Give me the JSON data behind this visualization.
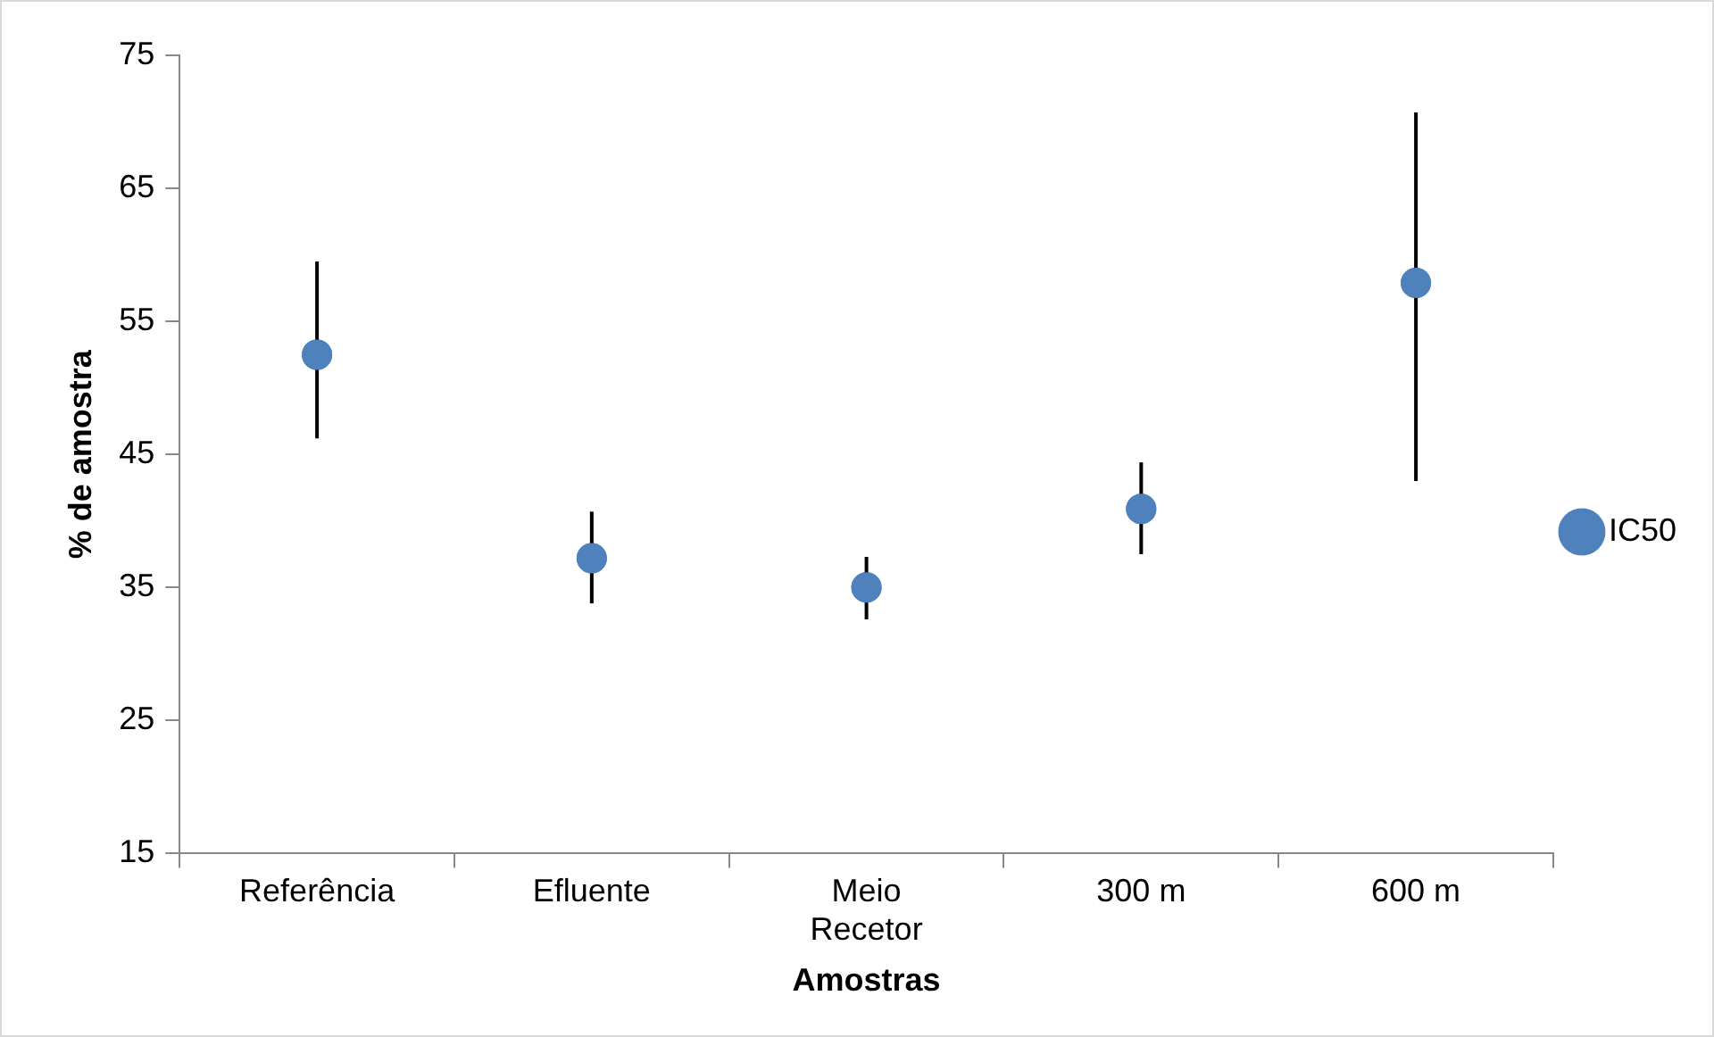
{
  "chart_data": {
    "type": "scatter",
    "xlabel": "Amostras",
    "ylabel": "% de amostra",
    "categories": [
      "Referência",
      "Efluente",
      "Meio Recetor",
      "300 m",
      "600 m"
    ],
    "series": [
      {
        "name": "IC50",
        "color": "#4f81bd",
        "values": [
          52.5,
          37.2,
          35.0,
          40.9,
          57.9
        ],
        "errors": [
          [
            46.2,
            59.5
          ],
          [
            33.8,
            40.7
          ],
          [
            32.6,
            37.3
          ],
          [
            37.5,
            44.4
          ],
          [
            43.0,
            70.7
          ]
        ]
      }
    ],
    "ylim": [
      15,
      75
    ],
    "yticks": [
      15,
      25,
      35,
      45,
      55,
      65,
      75
    ],
    "grid": false,
    "legend": "right",
    "marker": "circle"
  }
}
